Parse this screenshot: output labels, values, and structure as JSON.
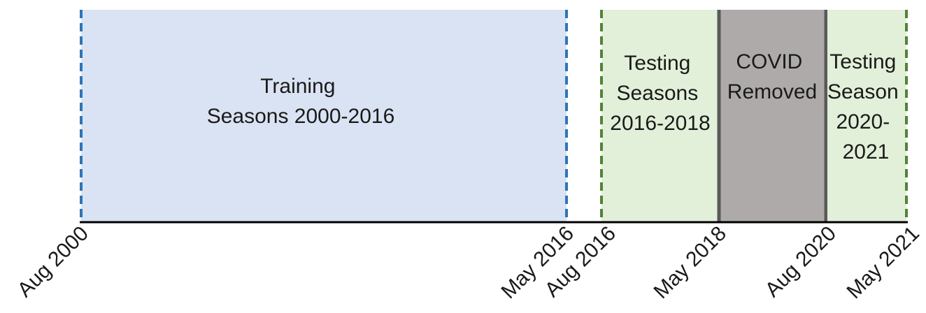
{
  "colors": {
    "training_fill": "#dae3f3",
    "training_edge": "#2e75b6",
    "testing_fill": "#e2f0d9",
    "testing_edge": "#548235",
    "covid_fill": "#aeaaaa",
    "covid_edge": "#595959",
    "axis": "#000000"
  },
  "blocks": {
    "training": {
      "lines": [
        "Training",
        "Seasons 2000-2016"
      ]
    },
    "testing_1": {
      "lines": [
        "Testing",
        "Seasons",
        "2016-2018"
      ]
    },
    "covid": {
      "lines": [
        "COVID",
        "Removed"
      ]
    },
    "testing_2": {
      "lines": [
        "Testing",
        "Season",
        "2020-",
        "2021"
      ]
    }
  },
  "dates": [
    "Aug 2000",
    "May 2016",
    "Aug 2016",
    "May 2018",
    "Aug 2020",
    "May 2021"
  ]
}
